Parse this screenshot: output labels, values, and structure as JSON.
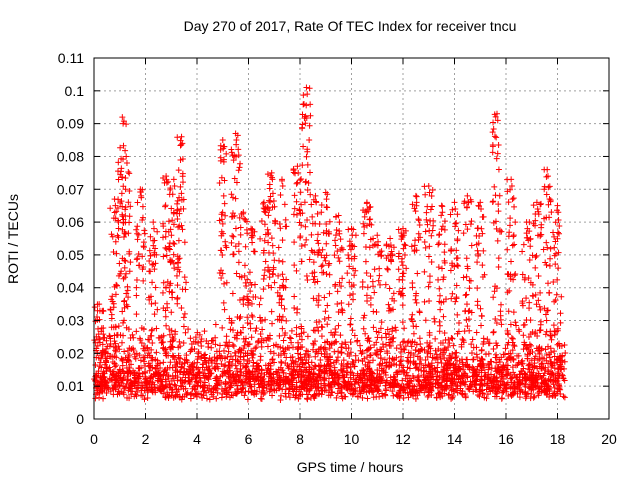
{
  "chart_data": {
    "type": "scatter",
    "title": "Day 270 of 2017, Rate Of TEC Index for receiver tncu",
    "xlabel": "GPS time / hours",
    "ylabel": "ROTI / TECUs",
    "xlim": [
      0,
      20
    ],
    "ylim": [
      0,
      0.11
    ],
    "xticks": [
      "0",
      "2",
      "4",
      "6",
      "8",
      "10",
      "12",
      "14",
      "16",
      "18",
      "20"
    ],
    "yticks": [
      "0",
      "0.01",
      "0.02",
      "0.03",
      "0.04",
      "0.05",
      "0.06",
      "0.07",
      "0.08",
      "0.09",
      "0.1",
      "0.11"
    ],
    "grid": true,
    "marker": "+",
    "color": "#ff0000",
    "data_time_range": [
      0,
      18.3
    ],
    "baseline_range": [
      0.005,
      0.03
    ],
    "peaks": [
      {
        "x": 0.2,
        "y": 0.035
      },
      {
        "x": 0.8,
        "y": 0.067
      },
      {
        "x": 1.1,
        "y": 0.092
      },
      {
        "x": 1.25,
        "y": 0.08
      },
      {
        "x": 1.8,
        "y": 0.07
      },
      {
        "x": 2.3,
        "y": 0.06
      },
      {
        "x": 2.8,
        "y": 0.074
      },
      {
        "x": 3.1,
        "y": 0.073
      },
      {
        "x": 3.4,
        "y": 0.086
      },
      {
        "x": 5.0,
        "y": 0.085
      },
      {
        "x": 5.5,
        "y": 0.087
      },
      {
        "x": 5.8,
        "y": 0.063
      },
      {
        "x": 6.1,
        "y": 0.058
      },
      {
        "x": 6.6,
        "y": 0.066
      },
      {
        "x": 6.9,
        "y": 0.075
      },
      {
        "x": 7.3,
        "y": 0.073
      },
      {
        "x": 7.9,
        "y": 0.077
      },
      {
        "x": 8.25,
        "y": 0.101
      },
      {
        "x": 8.6,
        "y": 0.068
      },
      {
        "x": 9.0,
        "y": 0.069
      },
      {
        "x": 9.5,
        "y": 0.062
      },
      {
        "x": 10.0,
        "y": 0.058
      },
      {
        "x": 10.6,
        "y": 0.066
      },
      {
        "x": 11.0,
        "y": 0.056
      },
      {
        "x": 11.5,
        "y": 0.055
      },
      {
        "x": 12.0,
        "y": 0.058
      },
      {
        "x": 12.5,
        "y": 0.068
      },
      {
        "x": 13.0,
        "y": 0.071
      },
      {
        "x": 13.5,
        "y": 0.065
      },
      {
        "x": 14.0,
        "y": 0.066
      },
      {
        "x": 14.5,
        "y": 0.068
      },
      {
        "x": 15.0,
        "y": 0.066
      },
      {
        "x": 15.65,
        "y": 0.093
      },
      {
        "x": 16.2,
        "y": 0.073
      },
      {
        "x": 16.8,
        "y": 0.06
      },
      {
        "x": 17.2,
        "y": 0.066
      },
      {
        "x": 17.6,
        "y": 0.076
      },
      {
        "x": 18.0,
        "y": 0.065
      }
    ]
  }
}
